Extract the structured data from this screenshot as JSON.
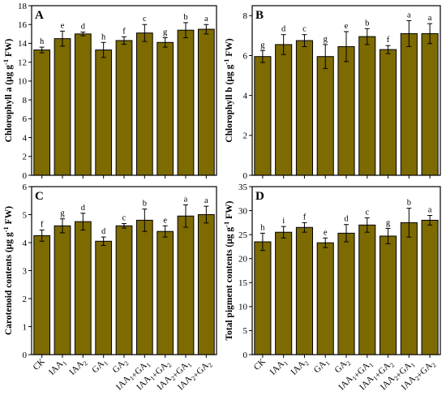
{
  "chart_data": [
    {
      "type": "bar",
      "panel_label": "A",
      "ylabel": "Chlorophyll a (μg g⁻¹ FW)",
      "ylim": [
        0,
        18
      ],
      "yticks": [
        0,
        2,
        4,
        6,
        8,
        10,
        12,
        14,
        16,
        18
      ],
      "categories": [
        "CK",
        "IAA1",
        "IAA2",
        "GA1",
        "GA2",
        "IAA1+GA1",
        "IAA1+GA2",
        "IAA2+GA1",
        "IAA2+GA2"
      ],
      "values": [
        13.3,
        14.5,
        15.0,
        13.3,
        14.3,
        15.1,
        14.1,
        15.4,
        15.5
      ],
      "errors": [
        0.3,
        0.8,
        0.2,
        0.8,
        0.4,
        0.9,
        0.5,
        0.8,
        0.5
      ],
      "significance": [
        "h",
        "e",
        "d",
        "h",
        "f",
        "c",
        "g",
        "b",
        "a"
      ],
      "bar_color": "#7d6a00",
      "show_category_labels": false
    },
    {
      "type": "bar",
      "panel_label": "B",
      "ylabel": "Chlorophyll b (μg g⁻¹ FW)",
      "ylim": [
        0,
        8.5
      ],
      "yticks": [
        0,
        2,
        4,
        6,
        8
      ],
      "categories": [
        "CK",
        "IAA1",
        "IAA2",
        "GA1",
        "GA2",
        "IAA1+GA1",
        "IAA1+GA2",
        "IAA2+GA1",
        "IAA2+GA2"
      ],
      "values": [
        5.95,
        6.55,
        6.75,
        5.95,
        6.45,
        6.95,
        6.3,
        7.1,
        7.1
      ],
      "errors": [
        0.3,
        0.5,
        0.3,
        0.6,
        0.75,
        0.4,
        0.2,
        0.65,
        0.5
      ],
      "significance": [
        "g",
        "d",
        "c",
        "g",
        "e",
        "b",
        "f",
        "a",
        "a"
      ],
      "bar_color": "#7d6a00",
      "show_category_labels": false
    },
    {
      "type": "bar",
      "panel_label": "C",
      "ylabel": "Carotenoid contents (μg g⁻¹ FW)",
      "ylim": [
        0,
        6
      ],
      "yticks": [
        0,
        1,
        2,
        3,
        4,
        5,
        6
      ],
      "categories": [
        "CK",
        "IAA1",
        "IAA2",
        "GA1",
        "GA2",
        "IAA1+GA1",
        "IAA1+GA2",
        "IAA2+GA1",
        "IAA2+GA2"
      ],
      "values": [
        4.25,
        4.6,
        4.75,
        4.05,
        4.6,
        4.8,
        4.4,
        4.95,
        5.0
      ],
      "errors": [
        0.2,
        0.25,
        0.3,
        0.15,
        0.08,
        0.4,
        0.2,
        0.4,
        0.3
      ],
      "significance": [
        "f",
        "g",
        "d",
        "d",
        "c",
        "b",
        "e",
        "a",
        "a"
      ],
      "bar_color": "#7d6a00",
      "show_category_labels": true
    },
    {
      "type": "bar",
      "panel_label": "D",
      "ylabel": "Total pigment contents (μg g⁻¹ FW)",
      "ylim": [
        0,
        35
      ],
      "yticks": [
        0,
        5,
        10,
        15,
        20,
        25,
        30,
        35
      ],
      "categories": [
        "CK",
        "IAA1",
        "IAA2",
        "GA1",
        "GA2",
        "IAA1+GA1",
        "IAA1+GA2",
        "IAA2+GA1",
        "IAA2+GA2"
      ],
      "values": [
        23.5,
        25.5,
        26.5,
        23.3,
        25.3,
        27.0,
        24.7,
        27.5,
        28.0
      ],
      "errors": [
        1.8,
        1.2,
        1.0,
        1.0,
        1.8,
        1.5,
        1.6,
        3.0,
        1.0
      ],
      "significance": [
        "h",
        "i",
        "f",
        "e",
        "d",
        "c",
        "g",
        "b",
        "a"
      ],
      "bar_color": "#7d6a00",
      "show_category_labels": true
    }
  ]
}
